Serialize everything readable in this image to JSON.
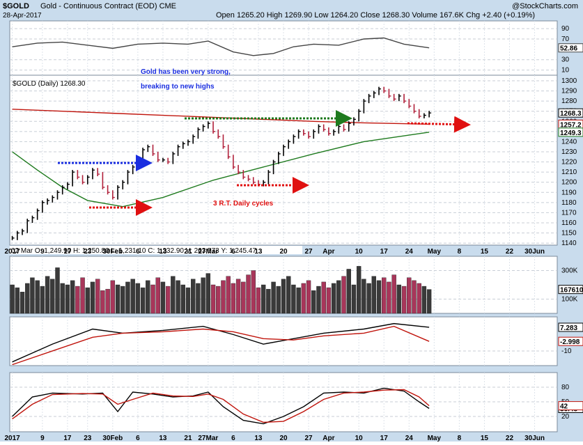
{
  "header": {
    "symbol": "$GOLD",
    "name": "Gold - Continuous Contract (EOD) CME",
    "date": "28-Apr-2017",
    "quote": "Open 1265.20  High 1269.90  Low 1264.20  Close 1268.30  Volume 167.6K  Chg +2.40 (+0.19%)",
    "brand": "@StockCharts.com"
  },
  "chart_data": [
    {
      "type": "line",
      "ylim": [
        0,
        105
      ],
      "yticks": [
        10,
        30,
        70,
        90
      ],
      "series": [
        {
          "color": "#444444",
          "x": [
            0,
            5,
            10,
            15,
            20,
            25,
            30,
            35,
            39,
            44,
            48,
            52,
            56,
            60,
            65,
            70,
            74,
            78,
            83
          ],
          "values": [
            55,
            62,
            64,
            58,
            52,
            60,
            62,
            60,
            66,
            45,
            38,
            42,
            55,
            60,
            58,
            70,
            72,
            60,
            52.86
          ]
        }
      ]
    },
    {
      "type": "price",
      "legend": "$GOLD (Daily) 1268.30",
      "info": "02 Mar O: 1,249.90  H: 1,250.80  L: 1,231.10  C: 1,232.90  V: 263,573  Y: 1,245.47",
      "annotations": [
        "Gold has been very strong,",
        "breaking to new highs",
        "3 R.T. Daily cycles"
      ],
      "xlim": [
        -0.5,
        108.5
      ],
      "xticks": [
        {
          "value": 0,
          "label": "2017"
        },
        {
          "value": 6,
          "label": "9"
        },
        {
          "value": 11,
          "label": "17"
        },
        {
          "value": 15,
          "label": "23"
        },
        {
          "value": 20,
          "label": "30Feb"
        },
        {
          "value": 25,
          "label": "6"
        },
        {
          "value": 30,
          "label": "13"
        },
        {
          "value": 35,
          "label": "21"
        },
        {
          "value": 39,
          "label": "27Mar"
        },
        {
          "value": 44,
          "label": "6"
        },
        {
          "value": 49,
          "label": "13"
        },
        {
          "value": 54,
          "label": "20"
        },
        {
          "value": 59,
          "label": "27"
        },
        {
          "value": 63,
          "label": "Apr"
        },
        {
          "value": 69,
          "label": "10"
        },
        {
          "value": 74,
          "label": "17"
        },
        {
          "value": 79,
          "label": "24"
        },
        {
          "value": 84,
          "label": "May"
        },
        {
          "value": 89,
          "label": "8"
        },
        {
          "value": 94,
          "label": "15"
        },
        {
          "value": 99,
          "label": "22"
        },
        {
          "value": 104,
          "label": "30Jun"
        }
      ],
      "ylim": [
        1138,
        1305.5
      ],
      "yticks": [
        1140,
        1150,
        1160,
        1170,
        1180,
        1190,
        1200,
        1210,
        1220,
        1230,
        1240,
        1250,
        1260,
        1270,
        1280,
        1290,
        1300
      ],
      "up_color": "#000000",
      "down_color": "#b0203a",
      "values": [
        1145,
        1150,
        1152,
        1162,
        1165,
        1172,
        1180,
        1182,
        1185,
        1190,
        1195,
        1198,
        1210,
        1205,
        1200,
        1205,
        1212,
        1208,
        1195,
        1190,
        1185,
        1195,
        1200,
        1210,
        1215,
        1222,
        1232,
        1235,
        1228,
        1222,
        1222,
        1220,
        1228,
        1235,
        1238,
        1240,
        1245,
        1252,
        1255,
        1258,
        1250,
        1245,
        1235,
        1225,
        1215,
        1210,
        1205,
        1203,
        1200,
        1198,
        1200,
        1210,
        1220,
        1228,
        1235,
        1240,
        1245,
        1250,
        1248,
        1245,
        1250,
        1255,
        1252,
        1248,
        1250,
        1255,
        1252,
        1258,
        1262,
        1270,
        1280,
        1285,
        1288,
        1292,
        1290,
        1285,
        1282,
        1285,
        1280,
        1275,
        1270,
        1265,
        1266,
        1268.3
      ],
      "series": [
        {
          "color": "#c0140c",
          "x": [
            0,
            10,
            20,
            30,
            40,
            50,
            60,
            70,
            83
          ],
          "values": [
            1272,
            1270,
            1268,
            1266,
            1264,
            1262,
            1260,
            1258.5,
            1257.2
          ]
        },
        {
          "color": "#1e7a1e",
          "x": [
            0,
            5,
            10,
            15,
            22,
            30,
            40,
            50,
            60,
            70,
            83
          ],
          "values": [
            1230,
            1212,
            1195,
            1182,
            1176,
            1185,
            1202,
            1215,
            1228,
            1240,
            1249.3
          ]
        }
      ]
    },
    {
      "type": "bar",
      "ylim": [
        0,
        400000
      ],
      "yticks": [
        {
          "value": 100000,
          "label": "100K"
        },
        {
          "value": 300000,
          "label": "300K"
        }
      ],
      "values": [
        200000,
        180000,
        150000,
        210000,
        250000,
        230000,
        190000,
        260000,
        240000,
        320000,
        210000,
        200000,
        230000,
        190000,
        250000,
        180000,
        220000,
        240000,
        160000,
        170000,
        230000,
        200000,
        190000,
        220000,
        240000,
        210000,
        180000,
        230000,
        200000,
        250000,
        220000,
        190000,
        260000,
        230000,
        200000,
        180000,
        240000,
        210000,
        250000,
        280000,
        200000,
        190000,
        230000,
        260000,
        210000,
        240000,
        220000,
        270000,
        300000,
        180000,
        200000,
        170000,
        220000,
        190000,
        240000,
        260000,
        200000,
        180000,
        210000,
        230000,
        160000,
        190000,
        220000,
        180000,
        210000,
        230000,
        260000,
        310000,
        200000,
        330000,
        240000,
        210000,
        260000,
        230000,
        250000,
        220000,
        270000,
        200000,
        190000,
        250000,
        230000,
        210000,
        190000,
        167610
      ]
    },
    {
      "type": "line",
      "ylim": [
        -20.7,
        14.9
      ],
      "yticks": [
        -10
      ],
      "series": [
        {
          "color": "#000000",
          "x": [
            0,
            8,
            16,
            22,
            30,
            38,
            44,
            50,
            56,
            62,
            70,
            76,
            83
          ],
          "values": [
            -18,
            -5,
            6,
            3,
            5,
            8,
            2,
            -5,
            -1,
            3,
            6,
            10,
            7.283
          ]
        },
        {
          "color": "#c0140c",
          "x": [
            0,
            8,
            16,
            22,
            30,
            38,
            44,
            50,
            56,
            62,
            70,
            76,
            83
          ],
          "values": [
            -20,
            -10,
            0,
            3,
            4,
            6,
            4,
            -1,
            -2,
            1,
            3,
            8,
            -2.998
          ]
        }
      ]
    },
    {
      "type": "line",
      "ylim": [
        -11.4,
        110
      ],
      "yticks": [
        20,
        50,
        80
      ],
      "series": [
        {
          "color": "#000000",
          "x": [
            0,
            4,
            8,
            14,
            18,
            21,
            24,
            28,
            32,
            36,
            39,
            42,
            46,
            50,
            54,
            58,
            62,
            66,
            70,
            74,
            78,
            81,
            83
          ],
          "values": [
            20,
            60,
            68,
            66,
            68,
            30,
            70,
            66,
            60,
            62,
            70,
            40,
            12,
            5,
            20,
            40,
            68,
            70,
            68,
            78,
            72,
            50,
            36.45
          ]
        },
        {
          "color": "#c0140c",
          "x": [
            0,
            4,
            8,
            14,
            18,
            21,
            24,
            28,
            32,
            36,
            39,
            42,
            46,
            50,
            54,
            58,
            62,
            66,
            70,
            74,
            78,
            81,
            83
          ],
          "values": [
            15,
            45,
            65,
            67,
            66,
            45,
            55,
            68,
            62,
            61,
            66,
            55,
            25,
            8,
            10,
            30,
            55,
            68,
            70,
            74,
            75,
            60,
            42
          ]
        }
      ]
    }
  ]
}
